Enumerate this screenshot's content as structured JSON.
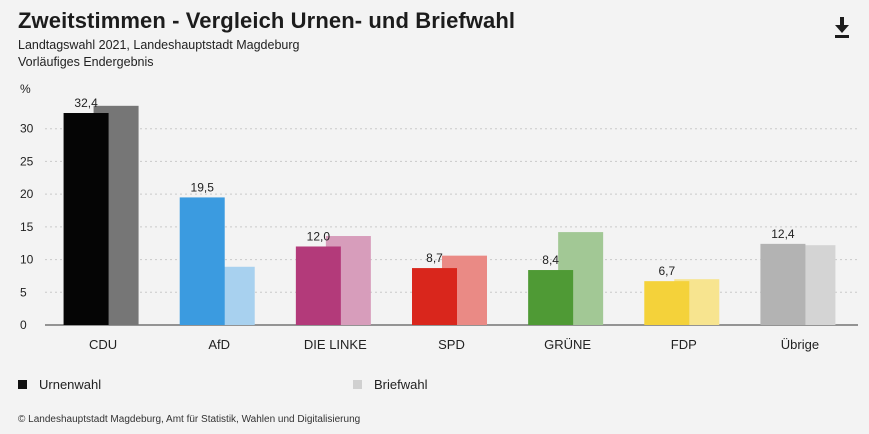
{
  "header": {
    "title": "Zweitstimmen - Vergleich Urnen- und Briefwahl",
    "subtitle_line1": "Landtagswahl 2021, Landeshauptstadt Magdeburg",
    "subtitle_line2": "Vorläufiges Endergebnis",
    "download_icon": "download-icon"
  },
  "legend": {
    "urnenwahl_label": "Urnenwahl",
    "briefwahl_label": "Briefwahl",
    "urnenwahl_color": "#111111",
    "briefwahl_color": "#d0d0d0"
  },
  "footer": {
    "source": "© Landeshauptstadt Magdeburg, Amt für Statistik, Wahlen und Digitalisierung"
  },
  "chart_data": {
    "type": "bar",
    "ylabel": "%",
    "ylim": [
      0,
      35
    ],
    "yticks": [
      0,
      5,
      10,
      15,
      20,
      25,
      30
    ],
    "grid": true,
    "legend_placement": "bottom-left",
    "categories": [
      "CDU",
      "AfD",
      "DIE LINKE",
      "SPD",
      "GRÜNE",
      "FDP",
      "Übrige"
    ],
    "series": [
      {
        "name": "Urnenwahl",
        "values": [
          32.4,
          19.5,
          12.0,
          8.7,
          8.4,
          6.7,
          12.4
        ],
        "labels": [
          "32,4",
          "19,5",
          "12,0",
          "8,7",
          "8,4",
          "6,7",
          "12,4"
        ]
      },
      {
        "name": "Briefwahl",
        "values": [
          33.5,
          8.9,
          13.6,
          10.6,
          14.2,
          7.0,
          12.2
        ]
      }
    ],
    "colors": {
      "urnenwahl": [
        "#050505",
        "#3b9be0",
        "#b33a7a",
        "#d9261c",
        "#4f9a35",
        "#f4d23a",
        "#b3b3b3"
      ],
      "briefwahl": [
        "#767676",
        "#a8d1ef",
        "#d79dbb",
        "#ea8a85",
        "#a2c895",
        "#f7e48f",
        "#d4d4d4"
      ]
    }
  }
}
